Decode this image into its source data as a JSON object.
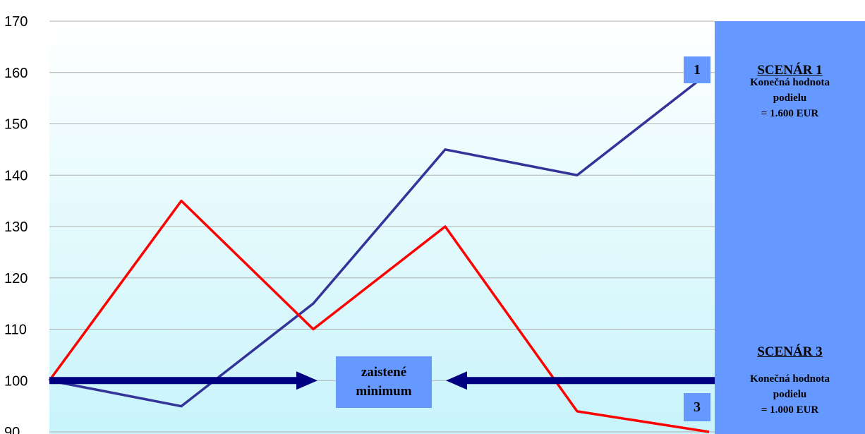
{
  "chart_data": {
    "type": "line",
    "ylim": [
      90,
      170
    ],
    "yticks": [
      "170",
      "160",
      "150",
      "140",
      "130",
      "120",
      "110",
      "100",
      "90"
    ],
    "x": [
      0,
      1,
      2,
      3,
      4,
      5
    ],
    "series": [
      {
        "values": [
          100,
          95,
          115,
          145,
          140,
          160
        ],
        "color": "#333399"
      },
      {
        "values": [
          100,
          135,
          110,
          130,
          94,
          90
        ],
        "color": "#ff0000"
      }
    ],
    "guaranteed_minimum": 100
  },
  "labels": {
    "marker1": "1",
    "marker3": "3",
    "minimum_line1": "zaistené",
    "minimum_line2": "minimum"
  },
  "scenario1": {
    "title": "SCENÁR 1",
    "line1": "Konečná hodnota",
    "line2": "podielu",
    "line3": "= 1.600 EUR"
  },
  "scenario3": {
    "title": "SCENÁR 3",
    "line1": "Konečná hodnota",
    "line2": "podielu",
    "line3": "= 1.000 EUR"
  },
  "colors": {
    "bg_top": "#ffffff",
    "bg_bottom": "#c8f4fb",
    "panel": "#6699ff",
    "arrow": "#000080",
    "line_blue": "#333399",
    "line_red": "#ff0000"
  }
}
